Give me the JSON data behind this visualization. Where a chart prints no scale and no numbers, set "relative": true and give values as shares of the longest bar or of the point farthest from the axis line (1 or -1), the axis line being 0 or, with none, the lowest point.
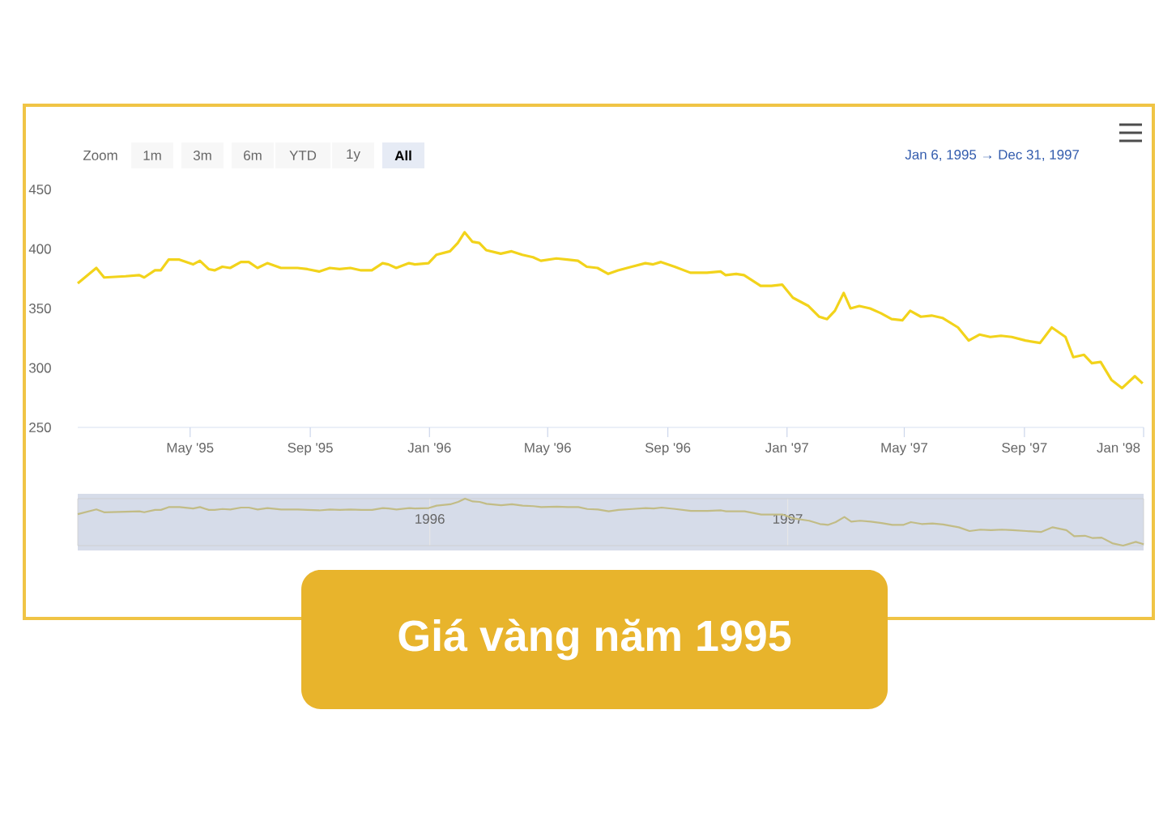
{
  "chart_data": [
    {
      "type": "line",
      "title": "Giá vàng năm 1995",
      "annotations": [
        "Jan 6, 1995 → Dec 31, 1997",
        "Zoom",
        "1m",
        "3m",
        "6m",
        "YTD",
        "1y",
        "All"
      ],
      "x": [
        "1995-01-06",
        "1995-01-25",
        "1995-02-02",
        "1995-02-24",
        "1995-03-10",
        "1995-03-15",
        "1995-03-26",
        "1995-04-01",
        "1995-04-09",
        "1995-04-20",
        "1995-05-04",
        "1995-05-11",
        "1995-05-20",
        "1995-05-26",
        "1995-06-03",
        "1995-06-11",
        "1995-06-22",
        "1995-06-30",
        "1995-07-09",
        "1995-07-19",
        "1995-08-02",
        "1995-08-19",
        "1995-08-29",
        "1995-09-10",
        "1995-09-21",
        "1995-10-01",
        "1995-10-12",
        "1995-10-23",
        "1995-11-03",
        "1995-11-14",
        "1995-11-20",
        "1995-11-28",
        "1995-12-11",
        "1995-12-17",
        "1995-12-31",
        "1996-01-08",
        "1996-01-22",
        "1996-01-30",
        "1996-02-06",
        "1996-02-14",
        "1996-02-21",
        "1996-02-28",
        "1996-03-14",
        "1996-03-25",
        "1996-04-05",
        "1996-04-16",
        "1996-04-24",
        "1996-05-10",
        "1996-05-21",
        "1996-06-01",
        "1996-06-10",
        "1996-06-21",
        "1996-07-02",
        "1996-07-12",
        "1996-07-26",
        "1996-08-09",
        "1996-08-17",
        "1996-08-25",
        "1996-09-08",
        "1996-09-24",
        "1996-10-11",
        "1996-10-25",
        "1996-10-30",
        "1996-11-10",
        "1996-11-18",
        "1996-12-05",
        "1996-12-16",
        "1996-12-27",
        "1997-01-07",
        "1997-01-23",
        "1997-02-03",
        "1997-02-11",
        "1997-02-19",
        "1997-02-28",
        "1997-03-07",
        "1997-03-16",
        "1997-03-27",
        "1997-04-07",
        "1997-04-18",
        "1997-04-29",
        "1997-05-07",
        "1997-05-18",
        "1997-05-29",
        "1997-06-09",
        "1997-06-25",
        "1997-07-06",
        "1997-07-17",
        "1997-07-28",
        "1997-08-08",
        "1997-08-19",
        "1997-09-02",
        "1997-09-17",
        "1997-09-29",
        "1997-10-13",
        "1997-10-21",
        "1997-11-01",
        "1997-11-09",
        "1997-11-18",
        "1997-11-29",
        "1997-12-10",
        "1997-12-23",
        "1997-12-31"
      ],
      "series": [
        {
          "color": "#f2d31b",
          "values": [
            371,
            384,
            376,
            377,
            378,
            376,
            382,
            382,
            391,
            391,
            387,
            390,
            383,
            382,
            385,
            384,
            389,
            389,
            384,
            388,
            384,
            384,
            383,
            381,
            384,
            383,
            384,
            382,
            382,
            388,
            387,
            384,
            388,
            387,
            388,
            395,
            398,
            405,
            414,
            406,
            405,
            399,
            396,
            398,
            395,
            393,
            390,
            392,
            391,
            390,
            385,
            384,
            379,
            382,
            385,
            388,
            387,
            389,
            385,
            380,
            380,
            381,
            378,
            379,
            378,
            369,
            369,
            370,
            359,
            352,
            343,
            341,
            348,
            363,
            350,
            352,
            350,
            346,
            341,
            340,
            348,
            343,
            344,
            342,
            334,
            323,
            328,
            326,
            327,
            326,
            323,
            321,
            334,
            326,
            309,
            311,
            304,
            305,
            290,
            283,
            293,
            287
          ]
        }
      ],
      "xlim": [
        "1995-01-06",
        "1998-01-01"
      ],
      "xticks": [
        {
          "value": "1995-05-01",
          "label": "May '95"
        },
        {
          "value": "1995-09-01",
          "label": "Sep '95"
        },
        {
          "value": "1996-01-01",
          "label": "Jan '96"
        },
        {
          "value": "1996-05-01",
          "label": "May '96"
        },
        {
          "value": "1996-09-01",
          "label": "Sep '96"
        },
        {
          "value": "1997-01-01",
          "label": "Jan '97"
        },
        {
          "value": "1997-05-01",
          "label": "May '97"
        },
        {
          "value": "1997-09-01",
          "label": "Sep '97"
        },
        {
          "value": "1998-01-01",
          "label": "Jan '98"
        }
      ],
      "ylim": [
        250,
        450
      ],
      "yticks": [
        250,
        300,
        350,
        400,
        450
      ]
    },
    {
      "type": "line",
      "x": [
        "1995-01-06",
        "1995-01-25",
        "1995-02-02",
        "1995-02-24",
        "1995-03-10",
        "1995-03-15",
        "1995-03-26",
        "1995-04-01",
        "1995-04-09",
        "1995-04-20",
        "1995-05-04",
        "1995-05-11",
        "1995-05-20",
        "1995-05-26",
        "1995-06-03",
        "1995-06-11",
        "1995-06-22",
        "1995-06-30",
        "1995-07-09",
        "1995-07-19",
        "1995-08-02",
        "1995-08-19",
        "1995-08-29",
        "1995-09-10",
        "1995-09-21",
        "1995-10-01",
        "1995-10-12",
        "1995-10-23",
        "1995-11-03",
        "1995-11-14",
        "1995-11-20",
        "1995-11-28",
        "1995-12-11",
        "1995-12-17",
        "1995-12-31",
        "1996-01-08",
        "1996-01-22",
        "1996-01-30",
        "1996-02-06",
        "1996-02-14",
        "1996-02-21",
        "1996-02-28",
        "1996-03-14",
        "1996-03-25",
        "1996-04-05",
        "1996-04-16",
        "1996-04-24",
        "1996-05-10",
        "1996-05-21",
        "1996-06-01",
        "1996-06-10",
        "1996-06-21",
        "1996-07-02",
        "1996-07-12",
        "1996-07-26",
        "1996-08-09",
        "1996-08-17",
        "1996-08-25",
        "1996-09-08",
        "1996-09-24",
        "1996-10-11",
        "1996-10-25",
        "1996-10-30",
        "1996-11-10",
        "1996-11-18",
        "1996-12-05",
        "1996-12-16",
        "1996-12-27",
        "1997-01-07",
        "1997-01-23",
        "1997-02-03",
        "1997-02-11",
        "1997-02-19",
        "1997-02-28",
        "1997-03-07",
        "1997-03-16",
        "1997-03-27",
        "1997-04-07",
        "1997-04-18",
        "1997-04-29",
        "1997-05-07",
        "1997-05-18",
        "1997-05-29",
        "1997-06-09",
        "1997-06-25",
        "1997-07-06",
        "1997-07-17",
        "1997-07-28",
        "1997-08-08",
        "1997-08-19",
        "1997-09-02",
        "1997-09-17",
        "1997-09-29",
        "1997-10-13",
        "1997-10-21",
        "1997-11-01",
        "1997-11-09",
        "1997-11-18",
        "1997-11-29",
        "1997-12-10",
        "1997-12-23",
        "1997-12-31"
      ],
      "series": [
        {
          "color": "#c2bc86",
          "values": [
            0.67,
            0.77,
            0.71,
            0.72,
            0.73,
            0.71,
            0.76,
            0.76,
            0.82,
            0.82,
            0.79,
            0.82,
            0.76,
            0.76,
            0.78,
            0.77,
            0.81,
            0.81,
            0.77,
            0.8,
            0.77,
            0.77,
            0.76,
            0.75,
            0.77,
            0.76,
            0.77,
            0.76,
            0.76,
            0.8,
            0.79,
            0.77,
            0.8,
            0.79,
            0.8,
            0.85,
            0.88,
            0.93,
            1,
            0.94,
            0.93,
            0.89,
            0.86,
            0.88,
            0.85,
            0.84,
            0.82,
            0.83,
            0.82,
            0.82,
            0.78,
            0.77,
            0.73,
            0.76,
            0.78,
            0.8,
            0.79,
            0.81,
            0.78,
            0.74,
            0.74,
            0.75,
            0.73,
            0.73,
            0.73,
            0.66,
            0.66,
            0.66,
            0.58,
            0.53,
            0.46,
            0.44,
            0.5,
            0.61,
            0.51,
            0.53,
            0.51,
            0.48,
            0.44,
            0.44,
            0.5,
            0.46,
            0.47,
            0.45,
            0.39,
            0.31,
            0.34,
            0.33,
            0.34,
            0.33,
            0.31,
            0.29,
            0.39,
            0.33,
            0.2,
            0.21,
            0.16,
            0.17,
            0.05,
            0,
            0.08,
            0.03
          ]
        }
      ],
      "xlim": [
        "1995-01-06",
        "1997-12-31"
      ],
      "xticks": [
        {
          "value": "1996-01-01",
          "label": "1996"
        },
        {
          "value": "1997-01-01",
          "label": "1997"
        }
      ],
      "relative": true,
      "grid": "x"
    }
  ]
}
